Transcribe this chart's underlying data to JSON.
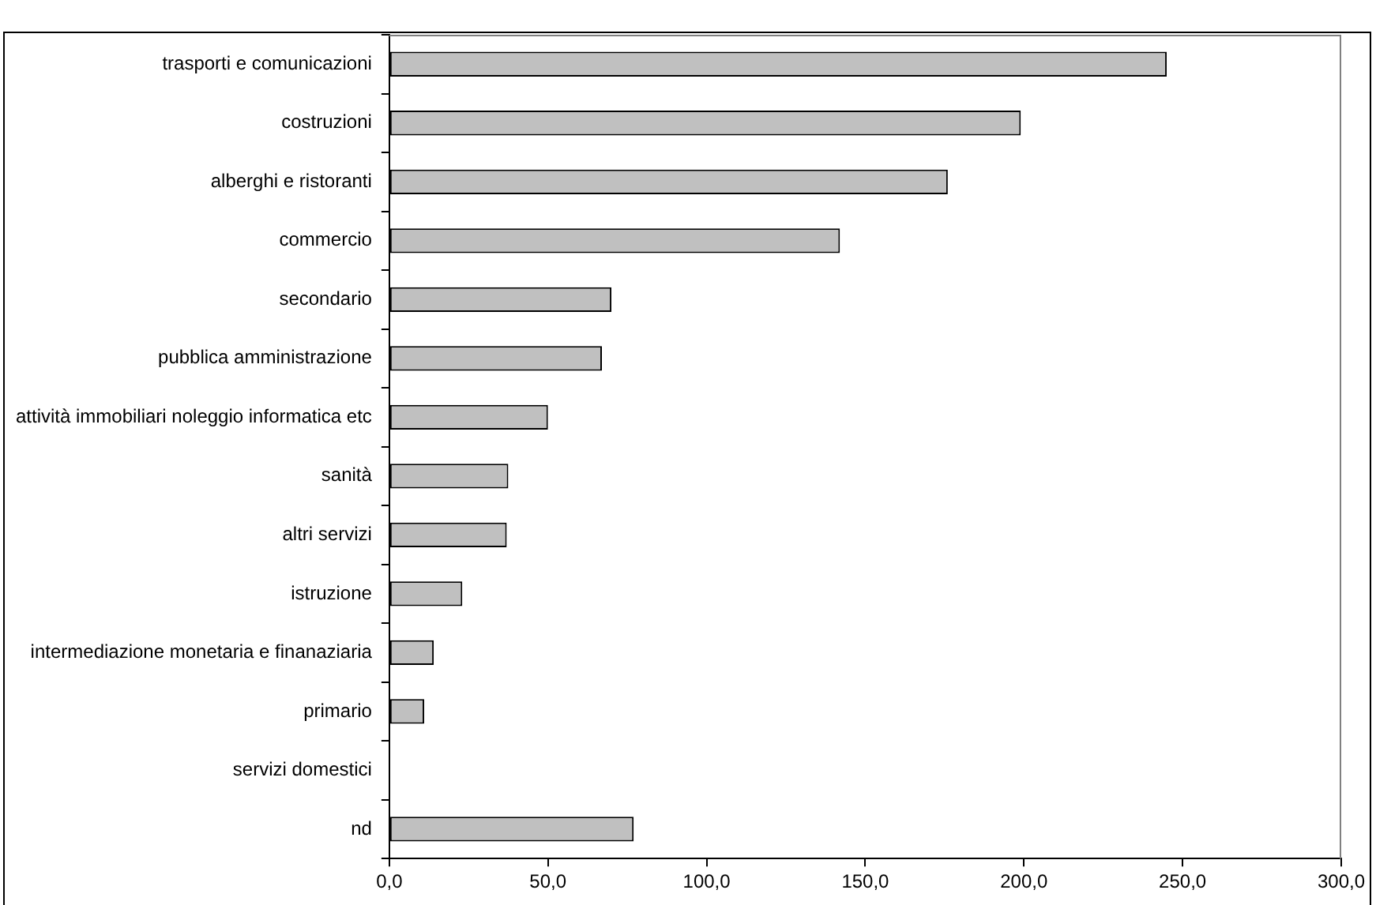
{
  "chart_data": {
    "type": "bar",
    "orientation": "horizontal",
    "categories": [
      "trasporti e comunicazioni",
      "costruzioni",
      "alberghi e ristoranti",
      "commercio",
      "secondario",
      "pubblica amministrazione",
      "attività immobiliari noleggio informatica etc",
      "sanità",
      "altri servizi",
      "istruzione",
      "intermediazione monetaria e finanaziaria",
      "primario",
      "servizi domestici",
      "nd"
    ],
    "values": [
      245,
      199,
      176,
      142,
      70,
      67,
      50,
      37.5,
      37,
      23,
      14,
      11,
      0,
      77
    ],
    "color": "#c0c0c0",
    "xlim": [
      0,
      300
    ],
    "xticks": [
      {
        "value": 0,
        "label": "0,0"
      },
      {
        "value": 50,
        "label": "50,0"
      },
      {
        "value": 100,
        "label": "100,0"
      },
      {
        "value": 150,
        "label": "150,0"
      },
      {
        "value": 200,
        "label": "200,0"
      },
      {
        "value": 250,
        "label": "250,0"
      },
      {
        "value": 300,
        "label": "300,0"
      }
    ],
    "grid": false,
    "legend": false
  }
}
